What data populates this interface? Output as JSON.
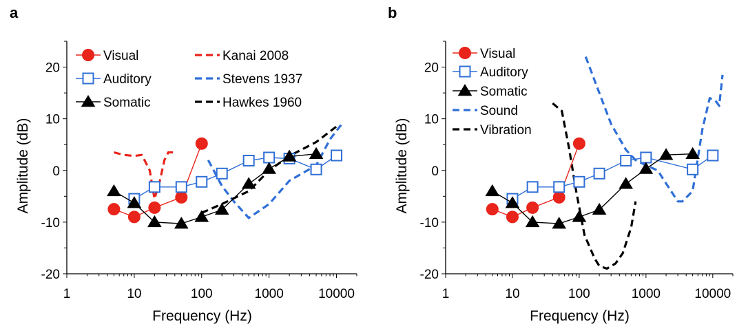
{
  "chart_data": [
    {
      "panel_label": "a",
      "type": "line",
      "xlabel": "Frequency (Hz)",
      "ylabel": "Amplitude (dB)",
      "xscale": "log",
      "xlim": [
        1,
        20000
      ],
      "ylim": [
        -20,
        25
      ],
      "x_ticks": [
        1,
        10,
        100,
        1000,
        10000
      ],
      "x_tick_labels": [
        "1",
        "10",
        "100",
        "1000",
        "10000"
      ],
      "y_ticks": [
        -20,
        -10,
        0,
        10,
        20
      ],
      "y_tick_labels": [
        "-20",
        "-10",
        "0",
        "10",
        "20"
      ],
      "legend_placement": "top",
      "series": [
        {
          "name": "Visual",
          "color": "#e8241b",
          "marker": "circle",
          "x": [
            5,
            10,
            20,
            50,
            100
          ],
          "y": [
            -7.5,
            -9,
            -7.2,
            -5.2,
            5.2
          ]
        },
        {
          "name": "Auditory",
          "color": "#2f6fd6",
          "marker": "square-open",
          "x": [
            10,
            20,
            50,
            100,
            200,
            500,
            1000,
            2000,
            5000,
            10000
          ],
          "y": [
            -5.5,
            -3.2,
            -3.2,
            -2.2,
            -0.6,
            1.9,
            2.5,
            2.3,
            0.2,
            2.9
          ]
        },
        {
          "name": "Somatic",
          "color": "#000000",
          "marker": "triangle",
          "x": [
            5,
            10,
            20,
            50,
            100,
            200,
            500,
            1000,
            2000,
            5000
          ],
          "y": [
            -4,
            -6.3,
            -10,
            -10.3,
            -9,
            -7.6,
            -2.6,
            0.3,
            2.7,
            3.2
          ]
        },
        {
          "name": "Kanai 2008",
          "color": "#e8241b",
          "style": "dashed",
          "x": [
            5,
            7,
            10,
            13,
            17,
            20,
            24,
            28,
            32,
            38
          ],
          "y": [
            3.5,
            3,
            2.8,
            3,
            0,
            -5.5,
            -2,
            2,
            3.5,
            3.5
          ]
        },
        {
          "name": "Stevens 1937",
          "color": "#2f6fd6",
          "style": "dashed",
          "x": [
            125,
            200,
            300,
            500,
            1000,
            2000,
            5000,
            8000,
            12000
          ],
          "y": [
            2,
            -3,
            -6,
            -9.2,
            -6.5,
            -2,
            1,
            6,
            9
          ]
        },
        {
          "name": "Hawkes 1960",
          "color": "#000000",
          "style": "dashed",
          "x": [
            100,
            200,
            500,
            1000,
            2000,
            5000,
            10000
          ],
          "y": [
            -8.2,
            -6.5,
            -4,
            0,
            2.8,
            5.5,
            8.5
          ]
        }
      ]
    },
    {
      "panel_label": "b",
      "type": "line",
      "xlabel": "Frequency (Hz)",
      "ylabel": "Amplitude (dB)",
      "xscale": "log",
      "xlim": [
        1,
        20000
      ],
      "ylim": [
        -20,
        25
      ],
      "x_ticks": [
        1,
        10,
        100,
        1000,
        10000
      ],
      "x_tick_labels": [
        "1",
        "10",
        "100",
        "1000",
        "10000"
      ],
      "y_ticks": [
        -20,
        -10,
        0,
        10,
        20
      ],
      "y_tick_labels": [
        "-20",
        "-10",
        "0",
        "10",
        "20"
      ],
      "legend_placement": "top-left",
      "series": [
        {
          "name": "Visual",
          "color": "#e8241b",
          "marker": "circle",
          "x": [
            5,
            10,
            20,
            50,
            100
          ],
          "y": [
            -7.5,
            -9,
            -7.2,
            -5.2,
            5.2
          ]
        },
        {
          "name": "Auditory",
          "color": "#2f6fd6",
          "marker": "square-open",
          "x": [
            10,
            20,
            50,
            100,
            200,
            500,
            1000,
            5000,
            10000
          ],
          "y": [
            -5.5,
            -3.2,
            -3.2,
            -2.2,
            -0.6,
            1.9,
            2.5,
            0.2,
            2.9
          ]
        },
        {
          "name": "Somatic",
          "color": "#000000",
          "marker": "triangle",
          "x": [
            5,
            10,
            20,
            50,
            100,
            200,
            500,
            1000,
            2000,
            5000
          ],
          "y": [
            -4,
            -6.3,
            -10,
            -10.3,
            -9,
            -7.6,
            -2.6,
            0.3,
            3,
            3.2
          ]
        },
        {
          "name": "Sound",
          "color": "#2f6fd6",
          "style": "dashed",
          "x": [
            125,
            200,
            300,
            500,
            700,
            1000,
            1500,
            2000,
            3000,
            3500,
            5000,
            7000,
            9000,
            11000,
            12500,
            14000
          ],
          "y": [
            22,
            15,
            9,
            4,
            2,
            1,
            0,
            -2.5,
            -6,
            -6,
            -4,
            8,
            14,
            13.5,
            12.5,
            18.5
          ]
        },
        {
          "name": "Vibration",
          "color": "#000000",
          "style": "dashed",
          "x": [
            40,
            55,
            70,
            90,
            120,
            170,
            200,
            260,
            350,
            450,
            600,
            700
          ],
          "y": [
            13,
            11.5,
            4.5,
            -4,
            -12.5,
            -17,
            -18.5,
            -19,
            -18,
            -16,
            -11,
            -6
          ]
        }
      ]
    }
  ]
}
